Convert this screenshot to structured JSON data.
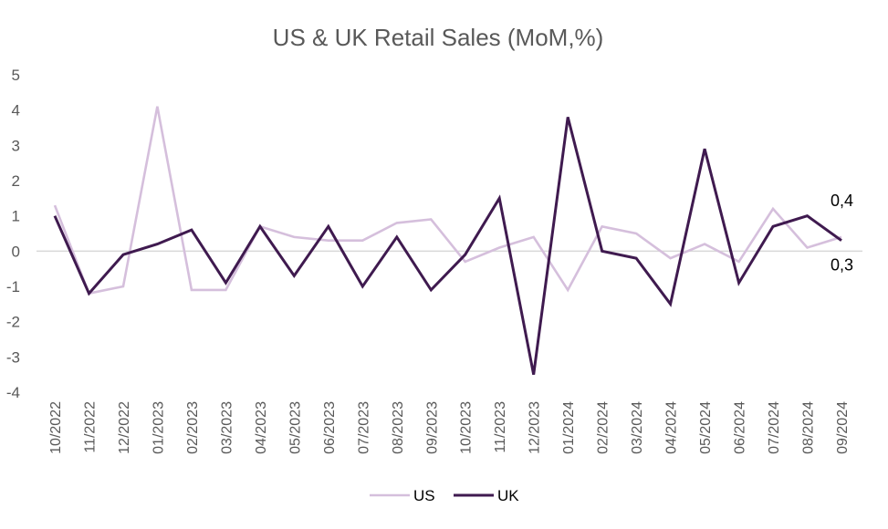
{
  "chart_data": {
    "type": "line",
    "title": "US & UK Retail Sales (MoM,%)",
    "xlabel": "",
    "ylabel": "",
    "ylim": [
      -4,
      5
    ],
    "yticks": [
      "5",
      "4",
      "3",
      "2",
      "1",
      "0",
      "-1",
      "-2",
      "-3",
      "-4"
    ],
    "grid": false,
    "legend_position": "bottom",
    "categories": [
      "10/2022",
      "11/2022",
      "12/2022",
      "01/2023",
      "02/2023",
      "03/2023",
      "04/2023",
      "05/2023",
      "06/2023",
      "07/2023",
      "08/2023",
      "09/2023",
      "10/2023",
      "11/2023",
      "12/2023",
      "01/2024",
      "02/2024",
      "03/2024",
      "04/2024",
      "05/2024",
      "06/2024",
      "07/2024",
      "08/2024",
      "09/2024"
    ],
    "series": [
      {
        "name": "US",
        "color": "#d5bfdc",
        "values": [
          1.3,
          -1.2,
          -1.0,
          4.1,
          -1.1,
          -1.1,
          0.7,
          0.4,
          0.3,
          0.3,
          0.8,
          0.9,
          -0.3,
          0.1,
          0.4,
          -1.1,
          0.7,
          0.5,
          -0.2,
          0.2,
          -0.3,
          1.2,
          0.1,
          0.4
        ]
      },
      {
        "name": "UK",
        "color": "#3f1a4f",
        "values": [
          1.0,
          -1.2,
          -0.1,
          0.2,
          0.6,
          -0.9,
          0.7,
          -0.7,
          0.7,
          -1.0,
          0.4,
          -1.1,
          -0.1,
          1.5,
          -3.5,
          3.8,
          0.0,
          -0.2,
          -1.5,
          2.9,
          -0.9,
          0.7,
          1.0,
          0.3
        ]
      }
    ],
    "annotations": [
      {
        "series": "US",
        "text": "0,4"
      },
      {
        "series": "UK",
        "text": "0,3"
      }
    ],
    "axis_color": "#d9d9d9"
  }
}
